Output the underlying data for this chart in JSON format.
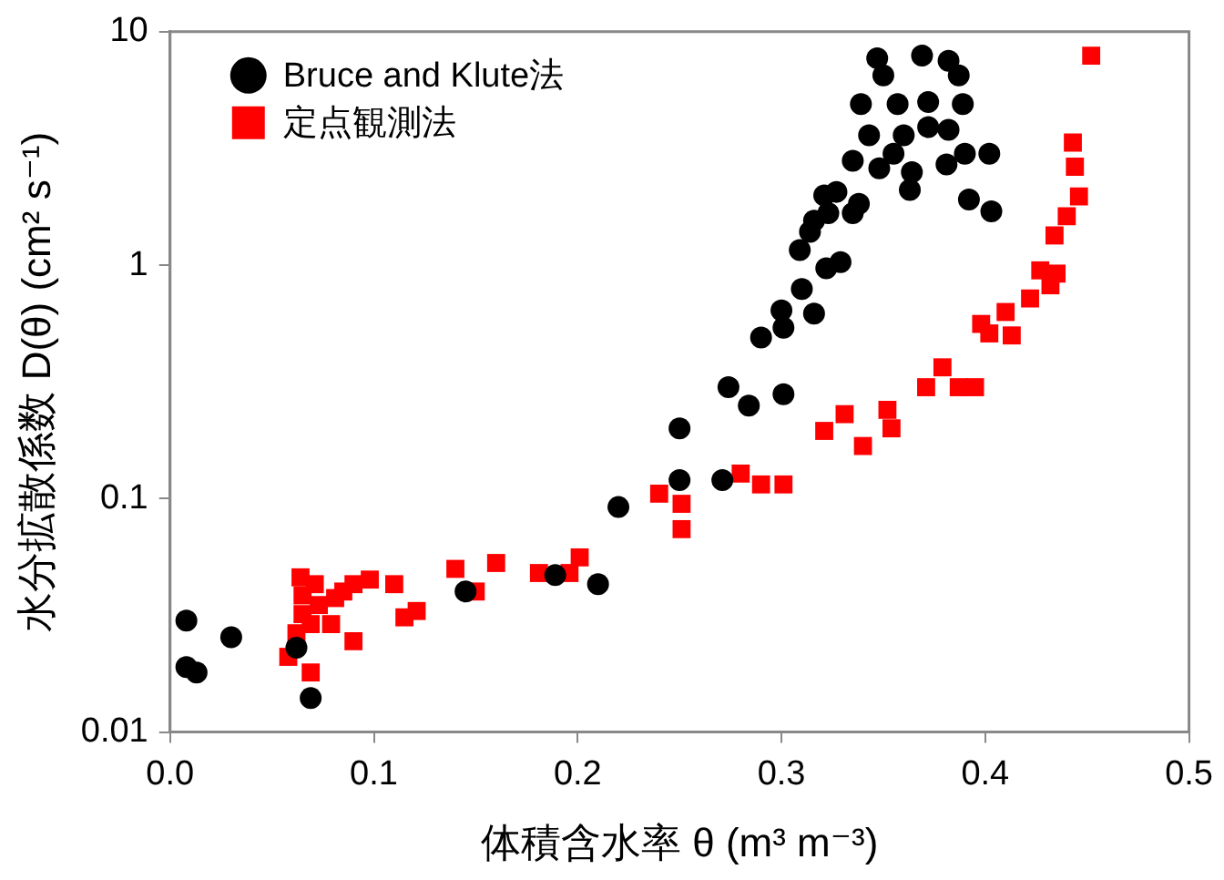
{
  "chart_data": {
    "type": "scatter",
    "xlabel": "体積含水率 θ (m³ m⁻³)",
    "ylabel": "水分拡散係数 D(θ) (cm² s⁻¹)",
    "xlim": [
      0,
      0.5
    ],
    "xticks": [
      {
        "value": 0,
        "label": "0.0"
      },
      0.1,
      0.2,
      0.3,
      0.4,
      0.5
    ],
    "ylim": [
      0.01,
      10
    ],
    "yticks": [
      0.01,
      0.1,
      1,
      10
    ],
    "log": "y",
    "grid": false,
    "legend": "top left",
    "series": [
      {
        "name": "Bruce and Klute法",
        "color": "#000000",
        "marker": "circle",
        "x": [
          0.008,
          0.008,
          0.013,
          0.03,
          0.062,
          0.069,
          0.145,
          0.189,
          0.21,
          0.22,
          0.25,
          0.25,
          0.271,
          0.274,
          0.284,
          0.301,
          0.29,
          0.301,
          0.3,
          0.316,
          0.31,
          0.322,
          0.329,
          0.309,
          0.314,
          0.316,
          0.323,
          0.335,
          0.338,
          0.327,
          0.321,
          0.335,
          0.348,
          0.364,
          0.381,
          0.39,
          0.363,
          0.392,
          0.403,
          0.402,
          0.343,
          0.36,
          0.372,
          0.382,
          0.339,
          0.357,
          0.372,
          0.389,
          0.35,
          0.387,
          0.347,
          0.369,
          0.382,
          0.355
        ],
        "values": [
          0.03,
          0.019,
          0.018,
          0.0255,
          0.023,
          0.014,
          0.04,
          0.047,
          0.043,
          0.092,
          0.12,
          0.2,
          0.12,
          0.3,
          0.25,
          0.28,
          0.49,
          0.54,
          0.64,
          0.62,
          0.79,
          0.97,
          1.03,
          1.16,
          1.39,
          1.55,
          1.67,
          1.67,
          1.83,
          2.06,
          1.99,
          2.8,
          2.6,
          2.5,
          2.7,
          3,
          2.1,
          1.91,
          1.7,
          3,
          3.6,
          3.6,
          3.9,
          3.8,
          4.9,
          4.9,
          5,
          4.9,
          6.5,
          6.5,
          7.7,
          7.9,
          7.5,
          3
        ]
      },
      {
        "name": "定点観測法",
        "color": "#ff0000",
        "marker": "square",
        "x": [
          0.064,
          0.065,
          0.065,
          0.062,
          0.058,
          0.069,
          0.069,
          0.071,
          0.073,
          0.079,
          0.081,
          0.085,
          0.09,
          0.09,
          0.098,
          0.11,
          0.115,
          0.121,
          0.14,
          0.15,
          0.16,
          0.181,
          0.196,
          0.201,
          0.24,
          0.251,
          0.251,
          0.28,
          0.29,
          0.301,
          0.321,
          0.331,
          0.34,
          0.352,
          0.354,
          0.371,
          0.379,
          0.387,
          0.395,
          0.398,
          0.402,
          0.41,
          0.413,
          0.422,
          0.427,
          0.432,
          0.435,
          0.434,
          0.44,
          0.446,
          0.444,
          0.443,
          0.452
        ],
        "values": [
          0.046,
          0.0385,
          0.032,
          0.0265,
          0.021,
          0.029,
          0.018,
          0.043,
          0.035,
          0.029,
          0.0375,
          0.04,
          0.0245,
          0.043,
          0.045,
          0.043,
          0.031,
          0.033,
          0.05,
          0.04,
          0.053,
          0.048,
          0.048,
          0.056,
          0.105,
          0.095,
          0.074,
          0.128,
          0.115,
          0.115,
          0.195,
          0.23,
          0.168,
          0.24,
          0.2,
          0.3,
          0.365,
          0.3,
          0.3,
          0.56,
          0.51,
          0.63,
          0.5,
          0.72,
          0.95,
          0.82,
          0.92,
          1.34,
          1.62,
          1.97,
          2.64,
          3.35,
          7.9
        ]
      }
    ]
  }
}
